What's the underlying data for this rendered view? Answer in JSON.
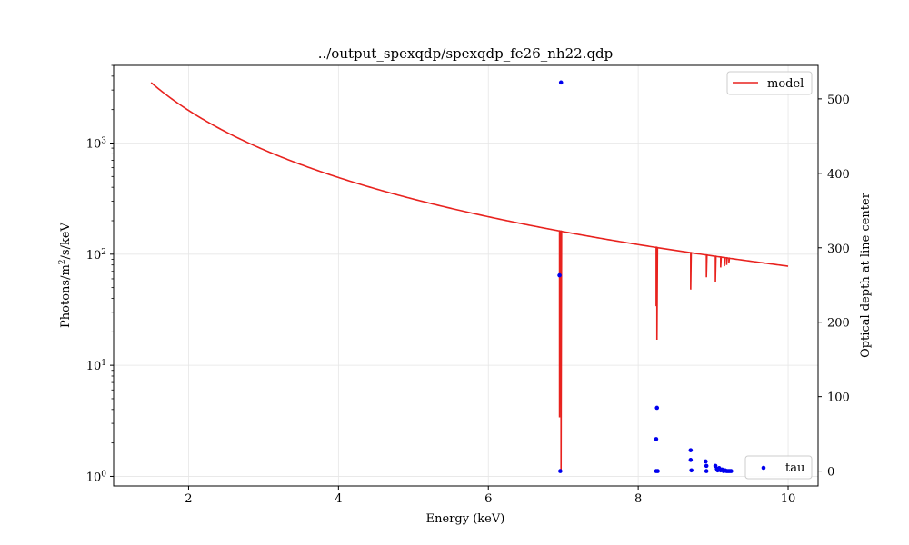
{
  "chart_data": {
    "type": "line",
    "title": "../output_spexqdp/spexqdp_fe26_nh22.qdp",
    "xlabel": "Energy (keV)",
    "ylabel_left_prefix": "Photons/m",
    "ylabel_left_sup": "2",
    "ylabel_left_suffix": "/s/keV",
    "ylabel_right": "Optical depth at line center",
    "xlim": [
      1.0,
      10.4
    ],
    "ylim_left": [
      0.82,
      5000
    ],
    "left_scale": "log",
    "ylim_right": [
      -20,
      545
    ],
    "grid": true,
    "x_ticks": [
      {
        "value": 2,
        "label": "2"
      },
      {
        "value": 4,
        "label": "4"
      },
      {
        "value": 6,
        "label": "6"
      },
      {
        "value": 8,
        "label": "8"
      },
      {
        "value": 10,
        "label": "10"
      }
    ],
    "y_left_ticks": [
      {
        "value": 1,
        "base": "10",
        "exp": "0"
      },
      {
        "value": 10,
        "base": "10",
        "exp": "1"
      },
      {
        "value": 100,
        "base": "10",
        "exp": "2"
      },
      {
        "value": 1000,
        "base": "10",
        "exp": "3"
      }
    ],
    "y_right_ticks": [
      {
        "value": 0,
        "label": "0"
      },
      {
        "value": 100,
        "label": "100"
      },
      {
        "value": 200,
        "label": "200"
      },
      {
        "value": 300,
        "label": "300"
      },
      {
        "value": 400,
        "label": "400"
      },
      {
        "value": 500,
        "label": "500"
      }
    ],
    "series": [
      {
        "name": "model",
        "axis": "left",
        "color": "#e8221e",
        "continuum_start": [
          1.5,
          3500
        ],
        "continuum_end": [
          10.0,
          78
        ],
        "absorption_lines": [
          {
            "x": 6.95,
            "y_min": 3.4
          },
          {
            "x": 6.97,
            "y_min": 1.15
          },
          {
            "x": 8.24,
            "y_min": 34
          },
          {
            "x": 8.25,
            "y_min": 17
          },
          {
            "x": 8.7,
            "y_min": 48
          },
          {
            "x": 8.91,
            "y_min": 62
          },
          {
            "x": 9.03,
            "y_min": 56
          },
          {
            "x": 9.1,
            "y_min": 76
          },
          {
            "x": 9.15,
            "y_min": 78
          },
          {
            "x": 9.18,
            "y_min": 80
          },
          {
            "x": 9.21,
            "y_min": 84
          }
        ]
      },
      {
        "name": "tau",
        "axis": "right",
        "color": "#0000ee",
        "points": [
          {
            "x": 6.97,
            "y": 522
          },
          {
            "x": 6.95,
            "y": 263
          },
          {
            "x": 6.96,
            "y": 0
          },
          {
            "x": 8.25,
            "y": 85
          },
          {
            "x": 8.24,
            "y": 43
          },
          {
            "x": 8.24,
            "y": 0
          },
          {
            "x": 8.26,
            "y": 0
          },
          {
            "x": 8.7,
            "y": 28
          },
          {
            "x": 8.7,
            "y": 15
          },
          {
            "x": 8.71,
            "y": 1
          },
          {
            "x": 8.9,
            "y": 13
          },
          {
            "x": 8.91,
            "y": 7
          },
          {
            "x": 8.91,
            "y": 0
          },
          {
            "x": 9.03,
            "y": 7
          },
          {
            "x": 9.05,
            "y": 3
          },
          {
            "x": 9.06,
            "y": 1
          },
          {
            "x": 9.08,
            "y": 4
          },
          {
            "x": 9.1,
            "y": 1
          },
          {
            "x": 9.12,
            "y": 2
          },
          {
            "x": 9.14,
            "y": 0
          },
          {
            "x": 9.16,
            "y": 1
          },
          {
            "x": 9.18,
            "y": 0
          },
          {
            "x": 9.2,
            "y": 0
          },
          {
            "x": 9.22,
            "y": 0
          },
          {
            "x": 9.24,
            "y": 0
          }
        ]
      }
    ],
    "legend_top": {
      "label": "model",
      "placement": "top-right"
    },
    "legend_bottom": {
      "label": "tau",
      "placement": "bottom-right"
    }
  }
}
